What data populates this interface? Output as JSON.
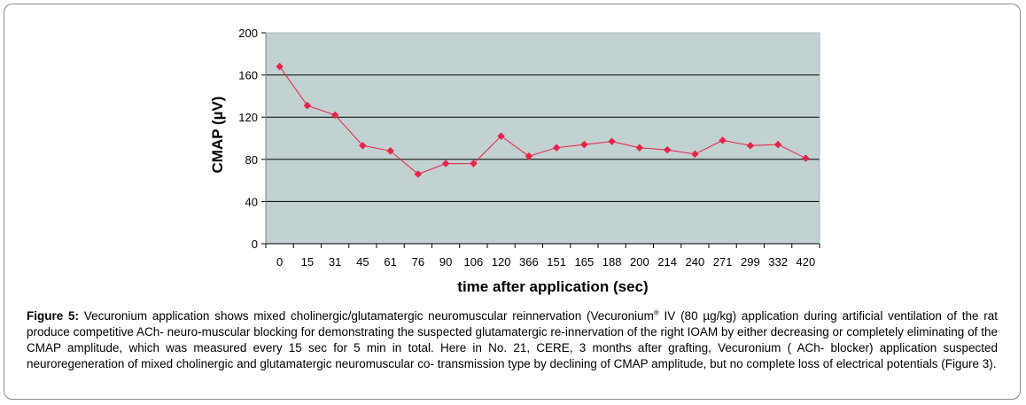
{
  "chart_data": {
    "type": "line",
    "categories": [
      "0",
      "15",
      "31",
      "45",
      "61",
      "76",
      "90",
      "106",
      "120",
      "366",
      "151",
      "165",
      "188",
      "200",
      "214",
      "240",
      "271",
      "299",
      "332",
      "420"
    ],
    "series": [
      {
        "values": [
          168,
          131,
          122,
          93,
          88,
          66,
          76,
          76,
          102,
          83,
          91,
          94,
          97,
          91,
          89,
          85,
          98,
          93,
          94,
          81
        ],
        "color": "#e8234a"
      }
    ],
    "xlabel": "time after application (sec)",
    "ylabel": "CMAP (µV)",
    "ylim": [
      0,
      200
    ],
    "yticks": [
      0,
      40,
      80,
      120,
      160,
      200
    ],
    "grid": "horizontal",
    "plot_background": "#c2d1d1",
    "line_color": "#e8234a"
  },
  "caption": {
    "label": "Figure 5:",
    "text_before_sup": " Vecuronium application shows mixed cholinergic/glutamatergic neuromuscular reinnervation (Vecuronium",
    "sup": "®",
    "text_after_sup": " IV (80 µg/kg) application during artificial ventilation of the rat produce competitive ACh- neuro-muscular blocking for demonstrating the suspected glutamatergic re-innervation of the right IOAM by either decreasing or completely eliminating of the CMAP amplitude, which was measured every 15 sec for 5 min in total. Here in No. 21, CERE, 3 months after grafting, Vecuronium ( ACh- blocker) application suspected neuroregeneration of mixed cholinergic and glutamatergic neuromuscular co- transmission type by declining of CMAP amplitude, but no complete loss of electrical potentials (Figure 3)."
  }
}
